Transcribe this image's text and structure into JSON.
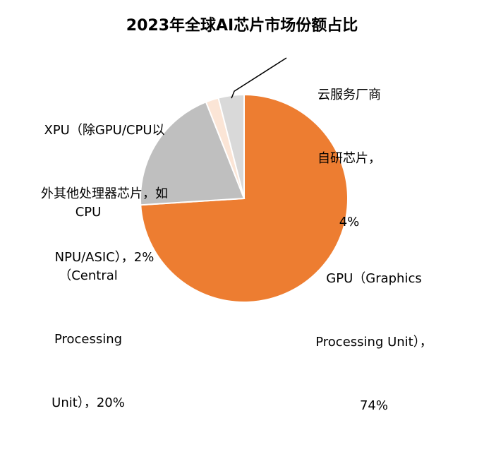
{
  "chart_data": {
    "type": "pie",
    "title": "2023年全球AI芯片市场份额占比",
    "slices": [
      {
        "label_lines": [
          "GPU（Graphics",
          "Processing Unit），",
          "74%"
        ],
        "value": 74,
        "color": "#ED7D31"
      },
      {
        "label_lines": [
          "CPU",
          "（Central",
          "Processing",
          "Unit），20%"
        ],
        "value": 20,
        "color": "#BFBFBF"
      },
      {
        "label_lines": [
          "XPU（除GPU/CPU以",
          "外其他处理器芯片，如",
          "NPU/ASIC），2%"
        ],
        "value": 2,
        "color": "#FBE5D6"
      },
      {
        "label_lines": [
          "云服务厂商",
          "自研芯片，",
          "4%"
        ],
        "value": 4,
        "color": "#D9D9D9"
      }
    ],
    "start_angle_deg": 0,
    "direction": "clockwise"
  }
}
